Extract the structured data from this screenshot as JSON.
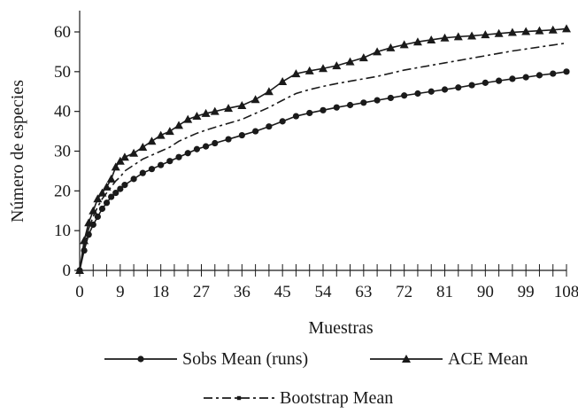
{
  "chart_data": {
    "type": "line",
    "xlabel": "Muestras",
    "ylabel": "Número de especies",
    "xlim": [
      0,
      108
    ],
    "ylim": [
      0,
      60
    ],
    "xticks": [
      0,
      9,
      18,
      27,
      36,
      45,
      54,
      63,
      72,
      81,
      90,
      99,
      108
    ],
    "yticks": [
      0,
      10,
      20,
      30,
      40,
      50,
      60
    ],
    "grid": false,
    "legend_position": "bottom",
    "x": [
      0,
      1,
      2,
      3,
      4,
      5,
      6,
      7,
      8,
      9,
      10,
      12,
      14,
      16,
      18,
      20,
      22,
      24,
      26,
      28,
      30,
      33,
      36,
      39,
      42,
      45,
      48,
      51,
      54,
      57,
      60,
      63,
      66,
      69,
      72,
      75,
      78,
      81,
      84,
      87,
      90,
      93,
      96,
      99,
      102,
      105,
      108
    ],
    "series": [
      {
        "name": "Sobs Mean (runs)",
        "marker": "circle",
        "dash": "solid",
        "values": [
          0,
          5,
          9,
          11.5,
          13.5,
          15.5,
          17,
          18.5,
          19.5,
          20.5,
          21.5,
          23,
          24.5,
          25.5,
          26.5,
          27.5,
          28.5,
          29.5,
          30.5,
          31.2,
          32,
          33,
          34,
          35,
          36.2,
          37.5,
          38.8,
          39.6,
          40.3,
          41,
          41.6,
          42.2,
          42.8,
          43.4,
          44,
          44.5,
          45,
          45.5,
          46,
          46.6,
          47.2,
          47.7,
          48.2,
          48.6,
          49.1,
          49.5,
          50
        ]
      },
      {
        "name": "ACE Mean",
        "marker": "triangle",
        "dash": "solid",
        "values": [
          0,
          7.5,
          12,
          15,
          18,
          19.5,
          21,
          23,
          26,
          27.5,
          28.5,
          29.5,
          31,
          32.5,
          34,
          35,
          36.5,
          38,
          38.8,
          39.5,
          40,
          40.8,
          41.5,
          43,
          45,
          47.5,
          49.5,
          50.2,
          50.8,
          51.5,
          52.5,
          53.5,
          55,
          56,
          56.8,
          57.5,
          58,
          58.5,
          58.8,
          59,
          59.3,
          59.6,
          59.9,
          60.1,
          60.3,
          60.5,
          60.8
        ]
      },
      {
        "name": "Bootstrap Mean",
        "marker": "square",
        "dash": "dashdot",
        "values": [
          0,
          6,
          10.5,
          13.5,
          16,
          18,
          19.5,
          21,
          22.5,
          23.5,
          25,
          26.5,
          28,
          29,
          30,
          31,
          32.5,
          33.5,
          34.5,
          35.3,
          36,
          37,
          38,
          39.5,
          41,
          42.8,
          44.5,
          45.5,
          46.3,
          47,
          47.6,
          48.2,
          48.8,
          49.6,
          50.4,
          51,
          51.6,
          52.2,
          52.8,
          53.4,
          54,
          54.6,
          55.2,
          55.7,
          56.2,
          56.7,
          57.2
        ]
      }
    ]
  }
}
